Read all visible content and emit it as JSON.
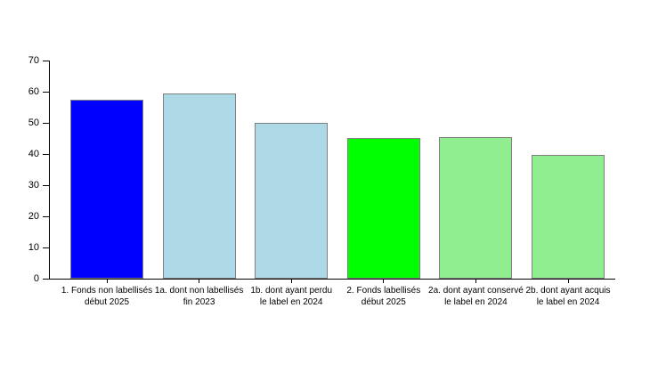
{
  "chart_data": {
    "type": "bar",
    "title": "",
    "xlabel": "",
    "ylabel": "",
    "categories": [
      "1. Fonds non labellisés\ndébut 2025",
      "1a. dont non labellisés\nfin 2023",
      "1b. dont ayant perdu\nle label en 2024",
      "2. Fonds labellisés\ndébut 2025",
      "2a. dont ayant conservé\nle label en 2024",
      "2b. dont ayant acquis\nle label en 2024"
    ],
    "values": [
      57.5,
      59.4,
      50.0,
      45.0,
      45.4,
      39.8
    ],
    "ylim": [
      0,
      70
    ],
    "yticks": [
      0,
      10,
      20,
      30,
      40,
      50,
      60,
      70
    ],
    "grid": false,
    "legend": "none",
    "bar_colors": [
      "#0000FF",
      "#ADD8E6",
      "#ADD8E6",
      "#00FF00",
      "#90EE90",
      "#90EE90"
    ],
    "bar_border_color": "#808080",
    "axis_color": "#000000",
    "background_color": "#FFFFFF"
  }
}
